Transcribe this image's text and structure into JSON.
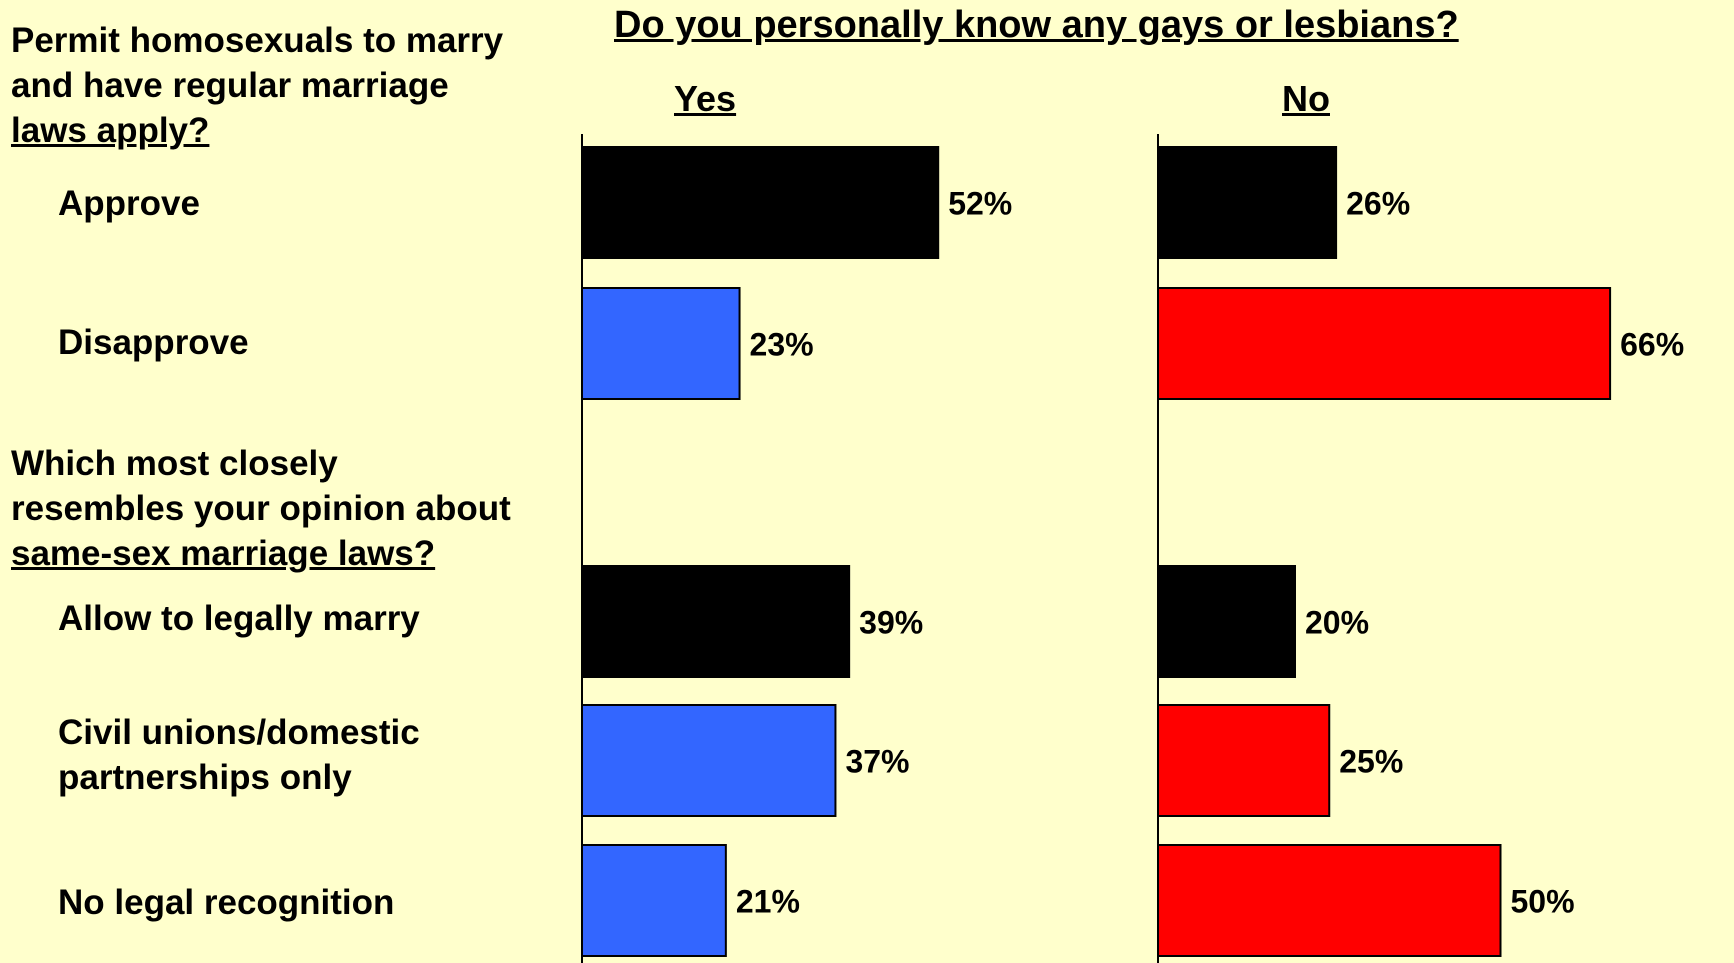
{
  "chart_data": {
    "type": "bar",
    "title": "Do you personally know any gays or lesbians?",
    "panels": [
      {
        "name": "Yes"
      },
      {
        "name": "No"
      }
    ],
    "questions": [
      {
        "lines": [
          "Permit homosexuals to marry",
          "and have regular marriage",
          "laws apply?"
        ],
        "categories": [
          {
            "lines": [
              "Approve"
            ],
            "values": [
              52,
              26
            ],
            "color": "#000000"
          },
          {
            "lines": [
              "Disapprove"
            ],
            "values": [
              23,
              66
            ],
            "color_yes": "#3366ff",
            "color_no": "#ff0000"
          }
        ]
      },
      {
        "lines": [
          "Which most closely",
          "resembles your opinion about",
          "same-sex marriage laws?"
        ],
        "categories": [
          {
            "lines": [
              "Allow to legally marry"
            ],
            "values": [
              39,
              20
            ],
            "color": "#000000"
          },
          {
            "lines": [
              "Civil unions/domestic",
              "partnerships only"
            ],
            "values": [
              37,
              25
            ],
            "color_yes": "#3366ff",
            "color_no": "#ff0000"
          },
          {
            "lines": [
              "No legal recognition"
            ],
            "values": [
              21,
              50
            ],
            "color_yes": "#3366ff",
            "color_no": "#ff0000"
          }
        ]
      }
    ],
    "value_suffix": "%",
    "colors": {
      "approve": "#000000",
      "yes_other": "#3366ff",
      "no_other": "#ff0000",
      "background": "#ffffcc"
    }
  }
}
